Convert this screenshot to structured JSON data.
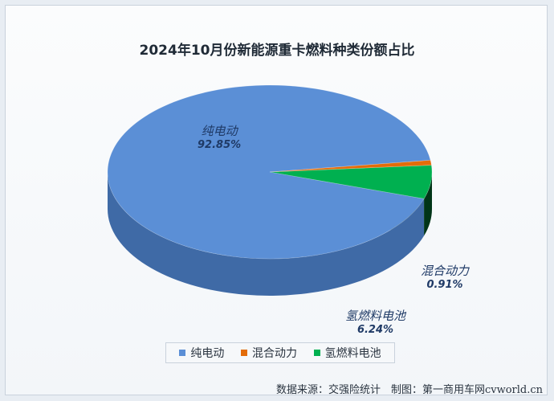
{
  "chart_data": {
    "type": "pie",
    "style": "3d",
    "title": "2024年10月份新能源重卡燃料种类份额占比",
    "slices": [
      {
        "label": "纯电动",
        "value": 92.85,
        "value_label": "92.85%",
        "color": "#5b8fd6"
      },
      {
        "label": "混合动力",
        "value": 0.91,
        "value_label": "0.91%",
        "color": "#e36c09"
      },
      {
        "label": "氢燃料电池",
        "value": 6.24,
        "value_label": "6.24%",
        "color": "#00b050"
      }
    ],
    "legend": {
      "placement": "bottom"
    }
  },
  "source_text": "数据来源：交强险统计　制图：第一商用车网cvworld.cn"
}
